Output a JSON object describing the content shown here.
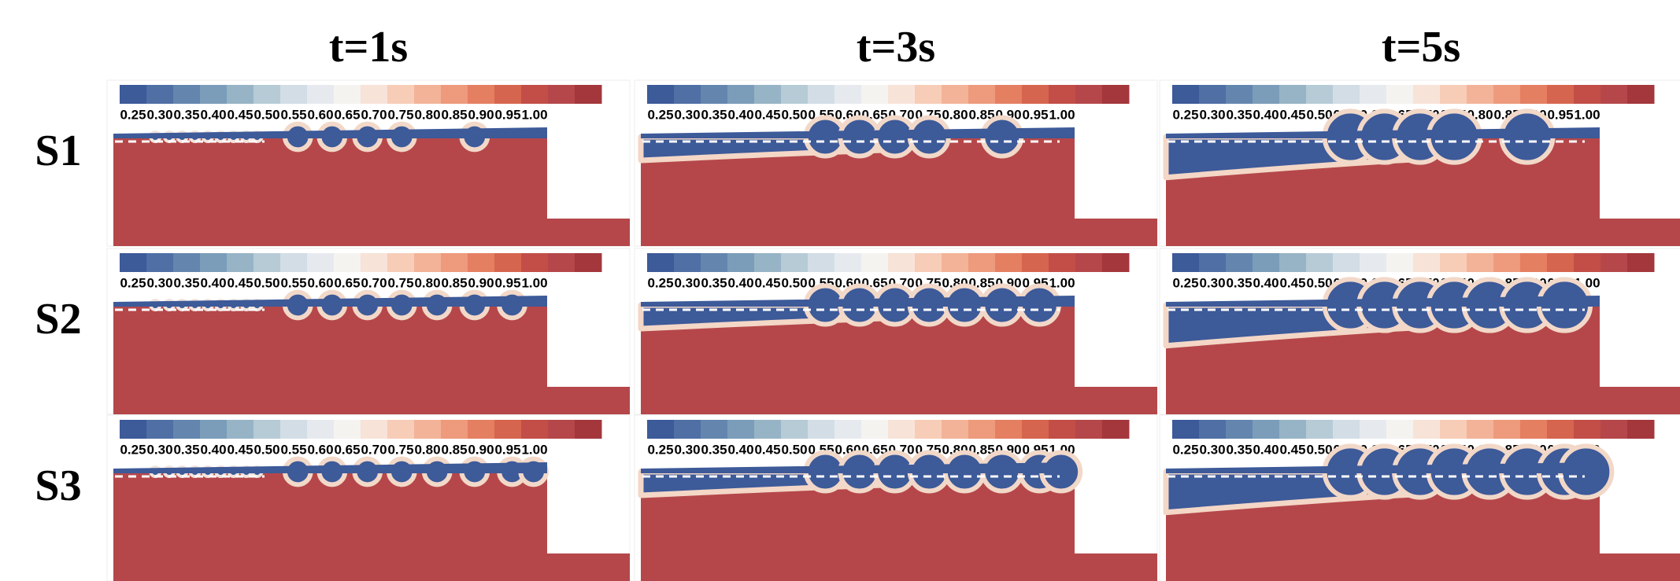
{
  "columns": [
    "t=1s",
    "t=3s",
    "t=5s"
  ],
  "rows": [
    "S1",
    "S2",
    "S3"
  ],
  "colorbar": {
    "colors": [
      "#3d5a99",
      "#4f6fa5",
      "#6486ae",
      "#7b9db9",
      "#97b4c6",
      "#b6cbd6",
      "#d3dde6",
      "#e6eaef",
      "#f5f3f0",
      "#f8e3d8",
      "#f7cdb8",
      "#f3b398",
      "#ee9a7c",
      "#e57f62",
      "#d6654f",
      "#c24e47",
      "#b5474a",
      "#a3373c"
    ],
    "ticks": [
      {
        "value": 0.25,
        "label": "0.25"
      },
      {
        "value": 0.3,
        "label": "0.30"
      },
      {
        "value": 0.35,
        "label": "0.35"
      },
      {
        "value": 0.4,
        "label": "0.40"
      },
      {
        "value": 0.45,
        "label": "0.45"
      },
      {
        "value": 0.5,
        "label": "0.50"
      },
      {
        "value": 0.55,
        "label": "0.55"
      },
      {
        "value": 0.6,
        "label": "0.60"
      },
      {
        "value": 0.65,
        "label": "0.65"
      },
      {
        "value": 0.7,
        "label": "0.70"
      },
      {
        "value": 0.75,
        "label": "0.75"
      },
      {
        "value": 0.8,
        "label": "0.80"
      },
      {
        "value": 0.85,
        "label": "0.85"
      },
      {
        "value": 0.9,
        "label": "0.90"
      },
      {
        "value": 0.95,
        "label": "0.95"
      },
      {
        "value": 1.0,
        "label": "1.00"
      }
    ]
  }
}
